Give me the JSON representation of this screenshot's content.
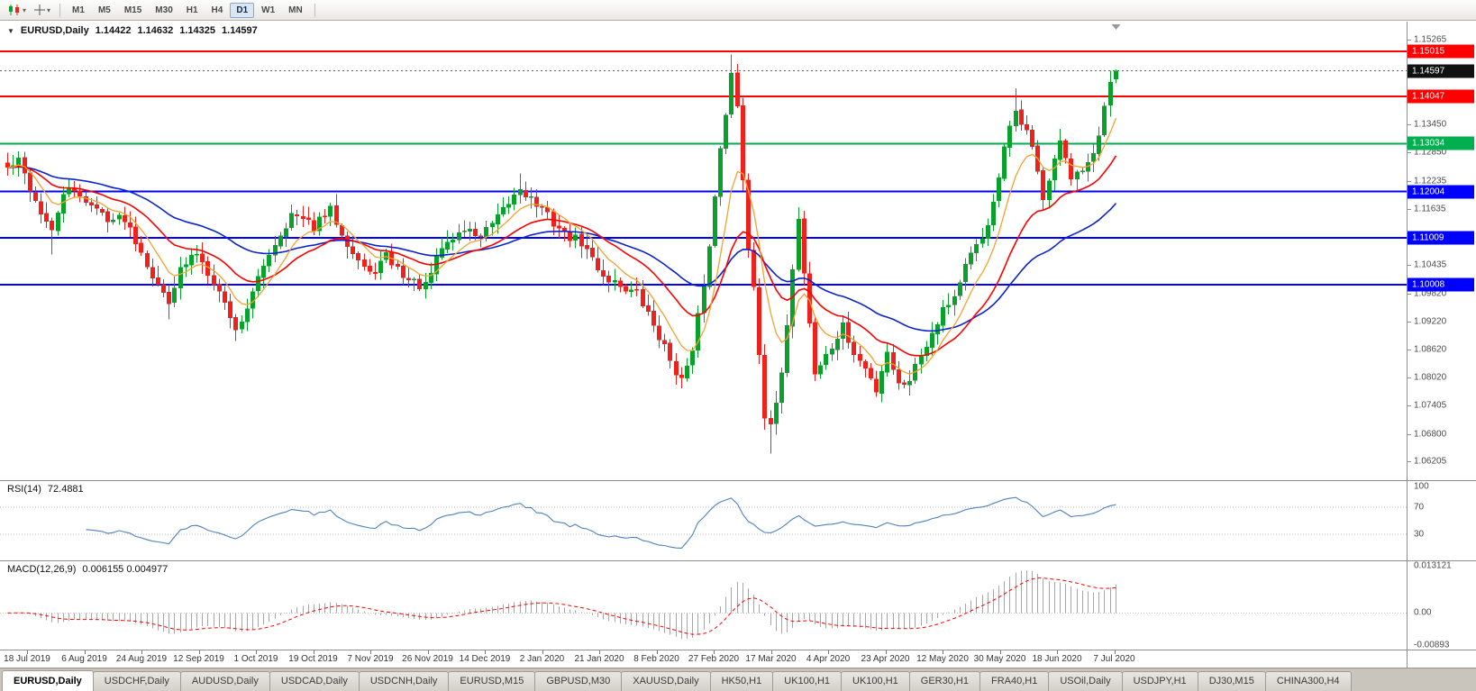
{
  "toolbar": {
    "timeframes": [
      "M1",
      "M5",
      "M15",
      "M30",
      "H1",
      "H4",
      "D1",
      "W1",
      "MN"
    ],
    "active_timeframe": "D1",
    "icons": [
      "candlestick-chart",
      "crosshair"
    ]
  },
  "main_chart": {
    "collapse_icon": "▼",
    "symbol_label": "EURUSD,Daily",
    "open": "1.14422",
    "high": "1.14632",
    "low": "1.14325",
    "close": "1.14597"
  },
  "rsi_panel": {
    "label": "RSI(14)",
    "value": "72.4881",
    "axis_labels": [
      {
        "text": "100",
        "value": 100
      },
      {
        "text": "70",
        "value": 70
      },
      {
        "text": "30",
        "value": 30
      }
    ],
    "line_color": "#4f81bd"
  },
  "macd_panel": {
    "label": "MACD(12,26,9)",
    "value": "0.006155 0.004977",
    "axis_labels": [
      {
        "text": "0.013121",
        "value": 0.013121
      },
      {
        "text": "0.00",
        "value": 0
      },
      {
        "text": "-0.00893",
        "value": -0.00893
      }
    ],
    "histogram_color": "#a6a6a6",
    "signal_color": "#ff0000"
  },
  "price_axis": {
    "labels": [
      "1.15265",
      "1.13450",
      "1.12850",
      "1.12235",
      "1.11635",
      "1.10435",
      "1.09820",
      "1.09220",
      "1.08620",
      "1.08020",
      "1.07405",
      "1.06800",
      "1.06205"
    ],
    "tags": [
      {
        "text": "1.15015",
        "price": 1.15015,
        "color": "#ff0000",
        "name": "resistance-tag-1"
      },
      {
        "text": "1.14047",
        "price": 1.14047,
        "color": "#ff0000",
        "name": "resistance-tag-2"
      },
      {
        "text": "1.13034",
        "price": 1.13034,
        "color": "#00b050",
        "name": "support-tag-green"
      },
      {
        "text": "1.12004",
        "price": 1.12004,
        "color": "#0000ff",
        "name": "support-tag-blue-1"
      },
      {
        "text": "1.11009",
        "price": 1.11009,
        "color": "#0000ff",
        "name": "support-tag-blue-2"
      },
      {
        "text": "1.10008",
        "price": 1.10008,
        "color": "#0000ff",
        "name": "support-tag-blue-3"
      },
      {
        "text": "1.14597",
        "price": 1.14597,
        "color": "#111111",
        "name": "current-price-tag"
      }
    ]
  },
  "date_axis": {
    "labels": [
      "18 Jul 2019",
      "6 Aug 2019",
      "24 Aug 2019",
      "12 Sep 2019",
      "1 Oct 2019",
      "19 Oct 2019",
      "7 Nov 2019",
      "26 Nov 2019",
      "14 Dec 2019",
      "2 Jan 2020",
      "21 Jan 2020",
      "8 Feb 2020",
      "27 Feb 2020",
      "17 Mar 2020",
      "4 Apr 2020",
      "23 Apr 2020",
      "12 May 2020",
      "30 May 2020",
      "18 Jun 2020",
      "7 Jul 2020"
    ]
  },
  "tabs": {
    "items": [
      "EURUSD,Daily",
      "USDCHF,Daily",
      "AUDUSD,Daily",
      "USDCAD,Daily",
      "USDCNH,Daily",
      "EURUSD,M15",
      "GBPUSD,M30",
      "XAUUSD,Daily",
      "HK50,H1",
      "UK100,H1",
      "UK100,H1",
      "GER30,H1",
      "FRA40,H1",
      "USOil,Daily",
      "USDJPY,H1",
      "DJ30,M15",
      "CHINA300,H4"
    ],
    "active_index": 0
  },
  "chart_data": {
    "type": "candlestick",
    "title": "EURUSD,Daily",
    "bars": 200,
    "price_range": {
      "top": 1.155,
      "bottom": 1.059
    },
    "last_candle": {
      "open": 1.14422,
      "high": 1.14632,
      "low": 1.14325,
      "close": 1.14597
    },
    "close_waypoints": [
      [
        0,
        1.125
      ],
      [
        2,
        1.1265
      ],
      [
        5,
        1.118
      ],
      [
        8,
        1.111
      ],
      [
        10,
        1.12
      ],
      [
        13,
        1.1195
      ],
      [
        16,
        1.116
      ],
      [
        19,
        1.114
      ],
      [
        21,
        1.1145
      ],
      [
        24,
        1.1075
      ],
      [
        27,
        1.0995
      ],
      [
        29,
        1.097
      ],
      [
        31,
        1.103
      ],
      [
        34,
        1.107
      ],
      [
        37,
        1.101
      ],
      [
        40,
        1.0935
      ],
      [
        41,
        1.09
      ],
      [
        44,
        1.098
      ],
      [
        47,
        1.107
      ],
      [
        51,
        1.115
      ],
      [
        55,
        1.1125
      ],
      [
        58,
        1.116
      ],
      [
        62,
        1.107
      ],
      [
        65,
        1.102
      ],
      [
        68,
        1.106
      ],
      [
        72,
        1.101
      ],
      [
        75,
        1.0995
      ],
      [
        78,
        1.108
      ],
      [
        82,
        1.112
      ],
      [
        85,
        1.1105
      ],
      [
        88,
        1.114
      ],
      [
        92,
        1.121
      ],
      [
        96,
        1.116
      ],
      [
        100,
        1.111
      ],
      [
        103,
        1.109
      ],
      [
        107,
        1.102
      ],
      [
        110,
        1.1
      ],
      [
        113,
        1.098
      ],
      [
        116,
        1.0915
      ],
      [
        119,
        1.084
      ],
      [
        121,
        1.0795
      ],
      [
        123,
        1.085
      ],
      [
        124,
        1.093
      ],
      [
        126,
        1.108
      ],
      [
        128,
        1.13
      ],
      [
        130,
        1.145
      ],
      [
        131,
        1.138
      ],
      [
        133,
        1.108
      ],
      [
        134,
        1.1
      ],
      [
        136,
        1.072
      ],
      [
        137,
        1.069
      ],
      [
        139,
        1.08
      ],
      [
        141,
        1.104
      ],
      [
        142,
        1.114
      ],
      [
        145,
        1.081
      ],
      [
        148,
        1.0865
      ],
      [
        150,
        1.091
      ],
      [
        152,
        1.085
      ],
      [
        154,
        1.082
      ],
      [
        156,
        1.0775
      ],
      [
        158,
        1.086
      ],
      [
        160,
        1.0785
      ],
      [
        162,
        1.08
      ],
      [
        164,
        1.085
      ],
      [
        166,
        1.09
      ],
      [
        168,
        1.095
      ],
      [
        170,
        1.0975
      ],
      [
        172,
        1.104
      ],
      [
        175,
        1.11
      ],
      [
        177,
        1.117
      ],
      [
        179,
        1.129
      ],
      [
        181,
        1.1375
      ],
      [
        183,
        1.133
      ],
      [
        185,
        1.125
      ],
      [
        186,
        1.1185
      ],
      [
        188,
        1.126
      ],
      [
        189,
        1.131
      ],
      [
        191,
        1.122
      ],
      [
        193,
        1.1255
      ],
      [
        195,
        1.129
      ],
      [
        196,
        1.132
      ],
      [
        197,
        1.138
      ],
      [
        198,
        1.143
      ],
      [
        199,
        1.14597
      ]
    ],
    "wick_extremes": [
      {
        "bar": 8,
        "low": 1.1065
      },
      {
        "bar": 29,
        "low": 1.0926
      },
      {
        "bar": 41,
        "low": 1.0879
      },
      {
        "bar": 92,
        "high": 1.1239
      },
      {
        "bar": 121,
        "low": 1.0778
      },
      {
        "bar": 130,
        "high": 1.1495
      },
      {
        "bar": 137,
        "low": 1.0637
      },
      {
        "bar": 156,
        "low": 1.0766
      },
      {
        "bar": 181,
        "high": 1.1422
      }
    ],
    "horizontal_lines": [
      {
        "price": 1.15015,
        "color": "#ff0000"
      },
      {
        "price": 1.14047,
        "color": "#ff0000"
      },
      {
        "price": 1.13034,
        "color": "#00b050"
      },
      {
        "price": 1.12004,
        "color": "#0000ff"
      },
      {
        "price": 1.11009,
        "color": "#0000ff"
      },
      {
        "price": 1.10008,
        "color": "#0000ff"
      }
    ],
    "moving_averages": [
      {
        "name": "slow",
        "period": 45,
        "color": "#0a23cc",
        "width": 1.6
      },
      {
        "name": "medium",
        "period": 21,
        "color": "#ff0000",
        "width": 1.6
      },
      {
        "name": "fast",
        "period": 8,
        "color": "#f2a22e",
        "width": 1.3
      }
    ],
    "up_color": "#0aa02c",
    "down_color": "#f0211c",
    "indicators": {
      "rsi": {
        "period": 14,
        "levels": [
          70,
          30
        ],
        "last": 72.4881
      },
      "macd": {
        "fast": 12,
        "slow": 26,
        "signal": 9,
        "last_main": 0.006155,
        "last_signal": 0.004977,
        "scale_max": 0.013121,
        "scale_min": -0.00893
      }
    }
  }
}
